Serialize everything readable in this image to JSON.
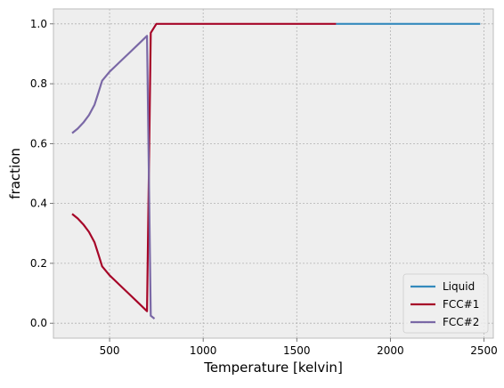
{
  "chart_data": {
    "type": "line",
    "title": "",
    "xlabel": "Temperature [kelvin]",
    "ylabel": "fraction",
    "xlim": [
      200,
      2550
    ],
    "ylim": [
      -0.05,
      1.05
    ],
    "xticks": [
      500,
      1000,
      1500,
      2000,
      2500
    ],
    "yticks": [
      0.0,
      0.2,
      0.4,
      0.6,
      0.8,
      1.0
    ],
    "xtick_labels": [
      "500",
      "1000",
      "1500",
      "2000",
      "2500"
    ],
    "ytick_labels": [
      "0.0",
      "0.2",
      "0.4",
      "0.6",
      "0.8",
      "1.0"
    ],
    "grid": true,
    "legend_position": "lower-right",
    "background": "#EEEEEE",
    "grid_color": "#B2B2B2",
    "series": [
      {
        "name": "Liquid",
        "color": "#348ABD",
        "x": [
          1710,
          2480
        ],
        "y": [
          1.0,
          1.0
        ]
      },
      {
        "name": "FCC#1",
        "color": "#A60628",
        "x": [
          300,
          330,
          360,
          390,
          420,
          440,
          460,
          500,
          550,
          600,
          650,
          700,
          720,
          750,
          1000,
          1500,
          1710
        ],
        "y": [
          0.365,
          0.35,
          0.33,
          0.305,
          0.27,
          0.23,
          0.19,
          0.16,
          0.13,
          0.1,
          0.07,
          0.04,
          0.97,
          1.0,
          1.0,
          1.0,
          1.0
        ]
      },
      {
        "name": "FCC#2",
        "color": "#7A68A6",
        "x": [
          300,
          330,
          360,
          390,
          420,
          440,
          460,
          500,
          550,
          600,
          650,
          700,
          720,
          740
        ],
        "y": [
          0.635,
          0.65,
          0.67,
          0.695,
          0.73,
          0.77,
          0.81,
          0.84,
          0.87,
          0.9,
          0.93,
          0.96,
          0.025,
          0.015
        ]
      }
    ]
  }
}
